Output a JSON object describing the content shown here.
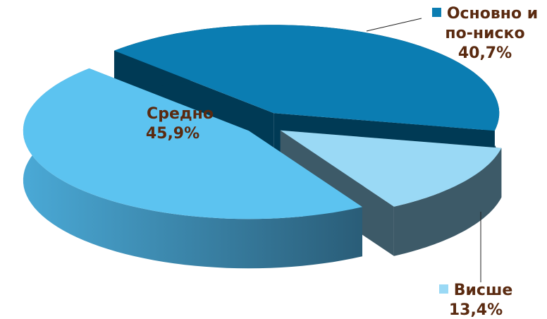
{
  "chart_data": {
    "type": "pie3d",
    "categories": [
      "Основно и по-ниско",
      "Висше",
      "Средно"
    ],
    "values": [
      40.7,
      13.4,
      45.9
    ],
    "value_labels": [
      "40,7%",
      "13,4%",
      "45,9%"
    ],
    "colors": [
      "#0b7db2",
      "#9ad9f5",
      "#5cc3f0"
    ]
  }
}
